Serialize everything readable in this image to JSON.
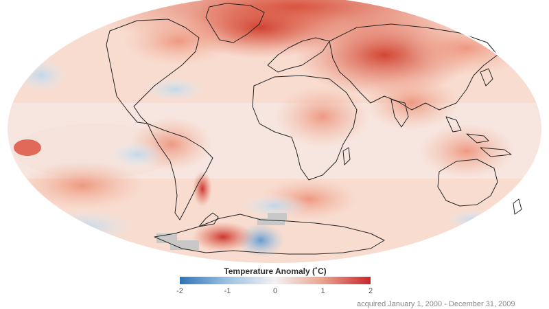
{
  "map": {
    "projection": "mollweide",
    "colors": {
      "strong_warm": "#d23a2c",
      "warm": "#ef9a80",
      "light_warm": "#f9d7c8",
      "neutral": "#f6efee",
      "cool": "#b8d5ea",
      "strong_cool": "#4a8ccb",
      "no_data": "#c8c8c8",
      "coastline": "#222222"
    }
  },
  "legend": {
    "title": "Temperature Anomaly (˚C)",
    "ticks": [
      "-2",
      "-1",
      "0",
      "1",
      "2"
    ],
    "range": [
      -2,
      2
    ],
    "gradient": [
      "#2f74b8",
      "#9cc2e3",
      "#f4f1f4",
      "#e9a38e",
      "#c8272d"
    ]
  },
  "caption": "acquired January 1, 2000 - December 31, 2009"
}
